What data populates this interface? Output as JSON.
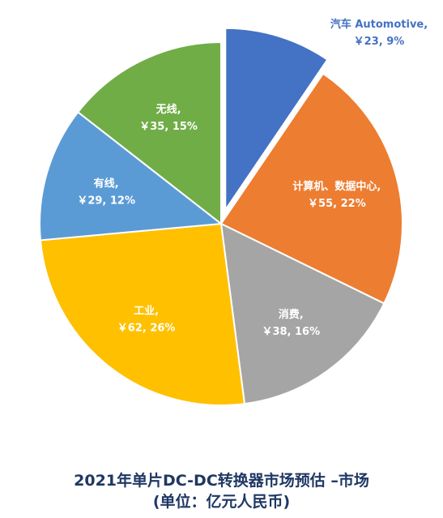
{
  "chart_data": {
    "type": "pie",
    "title": "2021年单片DC-DC转换器市场预估 –市场",
    "subtitle": "(单位：亿元人民币)",
    "unit": "亿元人民币",
    "slices": [
      {
        "name": "汽车 Automotive",
        "value": 23,
        "percent": 9,
        "label_line1": "汽车 Automotive,",
        "label_line2": "￥23, 9%",
        "color": "#4472c4",
        "label_color": "#4472c4",
        "exploded": true
      },
      {
        "name": "计算机、数据中心",
        "value": 55,
        "percent": 22,
        "label_line1": "计算机、数据中心,",
        "label_line2": "￥55, 22%",
        "color": "#ed7d31",
        "label_color": "#ffffff",
        "exploded": false
      },
      {
        "name": "消费",
        "value": 38,
        "percent": 16,
        "label_line1": "消费,",
        "label_line2": "￥38, 16%",
        "color": "#a5a5a5",
        "label_color": "#ffffff",
        "exploded": false
      },
      {
        "name": "工业",
        "value": 62,
        "percent": 26,
        "label_line1": "工业,",
        "label_line2": "￥62, 26%",
        "color": "#ffc000",
        "label_color": "#ffffff",
        "exploded": false
      },
      {
        "name": "有线",
        "value": 29,
        "percent": 12,
        "label_line1": "有线,",
        "label_line2": "￥29, 12%",
        "color": "#5b9bd5",
        "label_color": "#ffffff",
        "exploded": false
      },
      {
        "name": "无线",
        "value": 35,
        "percent": 15,
        "label_line1": "无线,",
        "label_line2": "￥35, 15%",
        "color": "#70ad47",
        "label_color": "#ffffff",
        "exploded": false
      }
    ],
    "legend": "none"
  }
}
